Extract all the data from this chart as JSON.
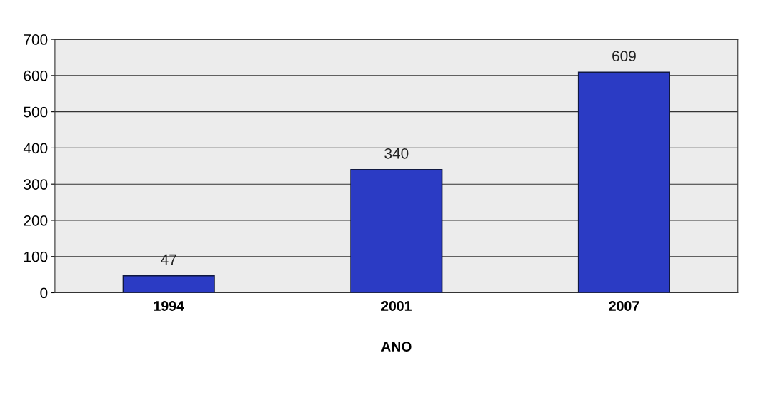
{
  "chart_data": {
    "type": "bar",
    "xlabel": "ANO",
    "categories": [
      "1994",
      "2001",
      "2007"
    ],
    "values": [
      47,
      340,
      609
    ],
    "color": "#2b3bc4",
    "ylim": [
      0,
      700
    ],
    "yticks": [
      0,
      100,
      200,
      300,
      400,
      500,
      600,
      700
    ],
    "grid": "y",
    "data_labels": true
  }
}
